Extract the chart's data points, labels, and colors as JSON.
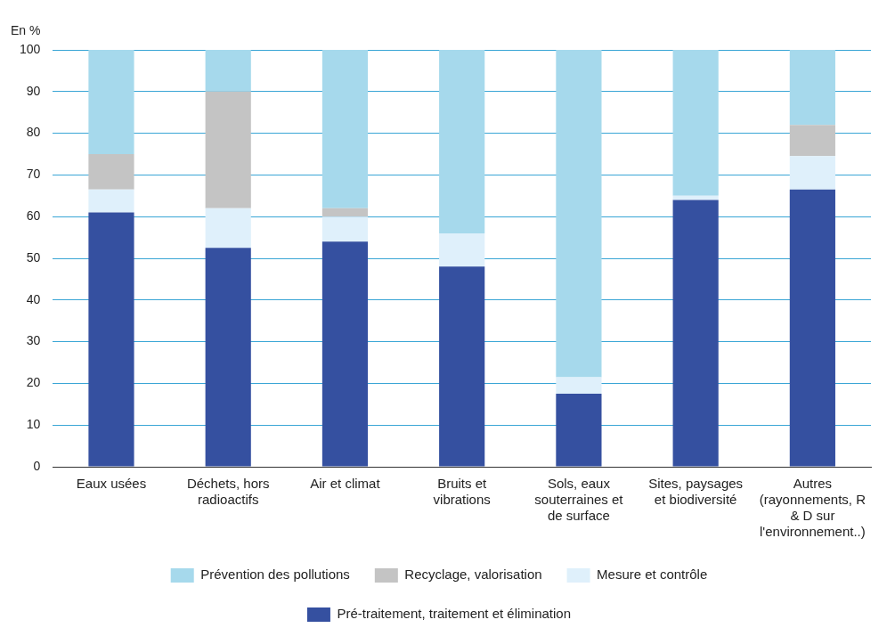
{
  "chart_data": {
    "type": "bar",
    "ylabel": "En %",
    "stacked": true,
    "categories": [
      "Eaux usées",
      "Déchets, hors radioactifs",
      "Air et climat",
      "Bruits et vibrations",
      "Sols, eaux souterraines et de surface",
      "Sites, paysages et biodiversité",
      "Autres (rayonnements, R & D sur l'environnement..)"
    ],
    "series": [
      {
        "name": "Pré-traitement, traitement et élimination",
        "color": "#3550a0",
        "values": [
          61,
          52.5,
          54,
          48,
          17.5,
          64,
          66.5
        ]
      },
      {
        "name": "Mesure et contrôle",
        "color": "#dff0fb",
        "values": [
          5.5,
          9.5,
          6,
          8,
          4,
          1,
          8
        ]
      },
      {
        "name": "Recyclage, valorisation",
        "color": "#c4c4c4",
        "values": [
          8.5,
          28,
          2,
          0,
          0,
          0,
          7.5
        ]
      },
      {
        "name": "Prévention des pollutions",
        "color": "#a6d9ec",
        "values": [
          25,
          10,
          38,
          44,
          78.5,
          35,
          18
        ]
      }
    ],
    "ylim": [
      0,
      100
    ],
    "yticks": [
      0,
      10,
      20,
      30,
      40,
      50,
      60,
      70,
      80,
      90,
      100
    ],
    "grid": "y",
    "legend": "bottom"
  }
}
